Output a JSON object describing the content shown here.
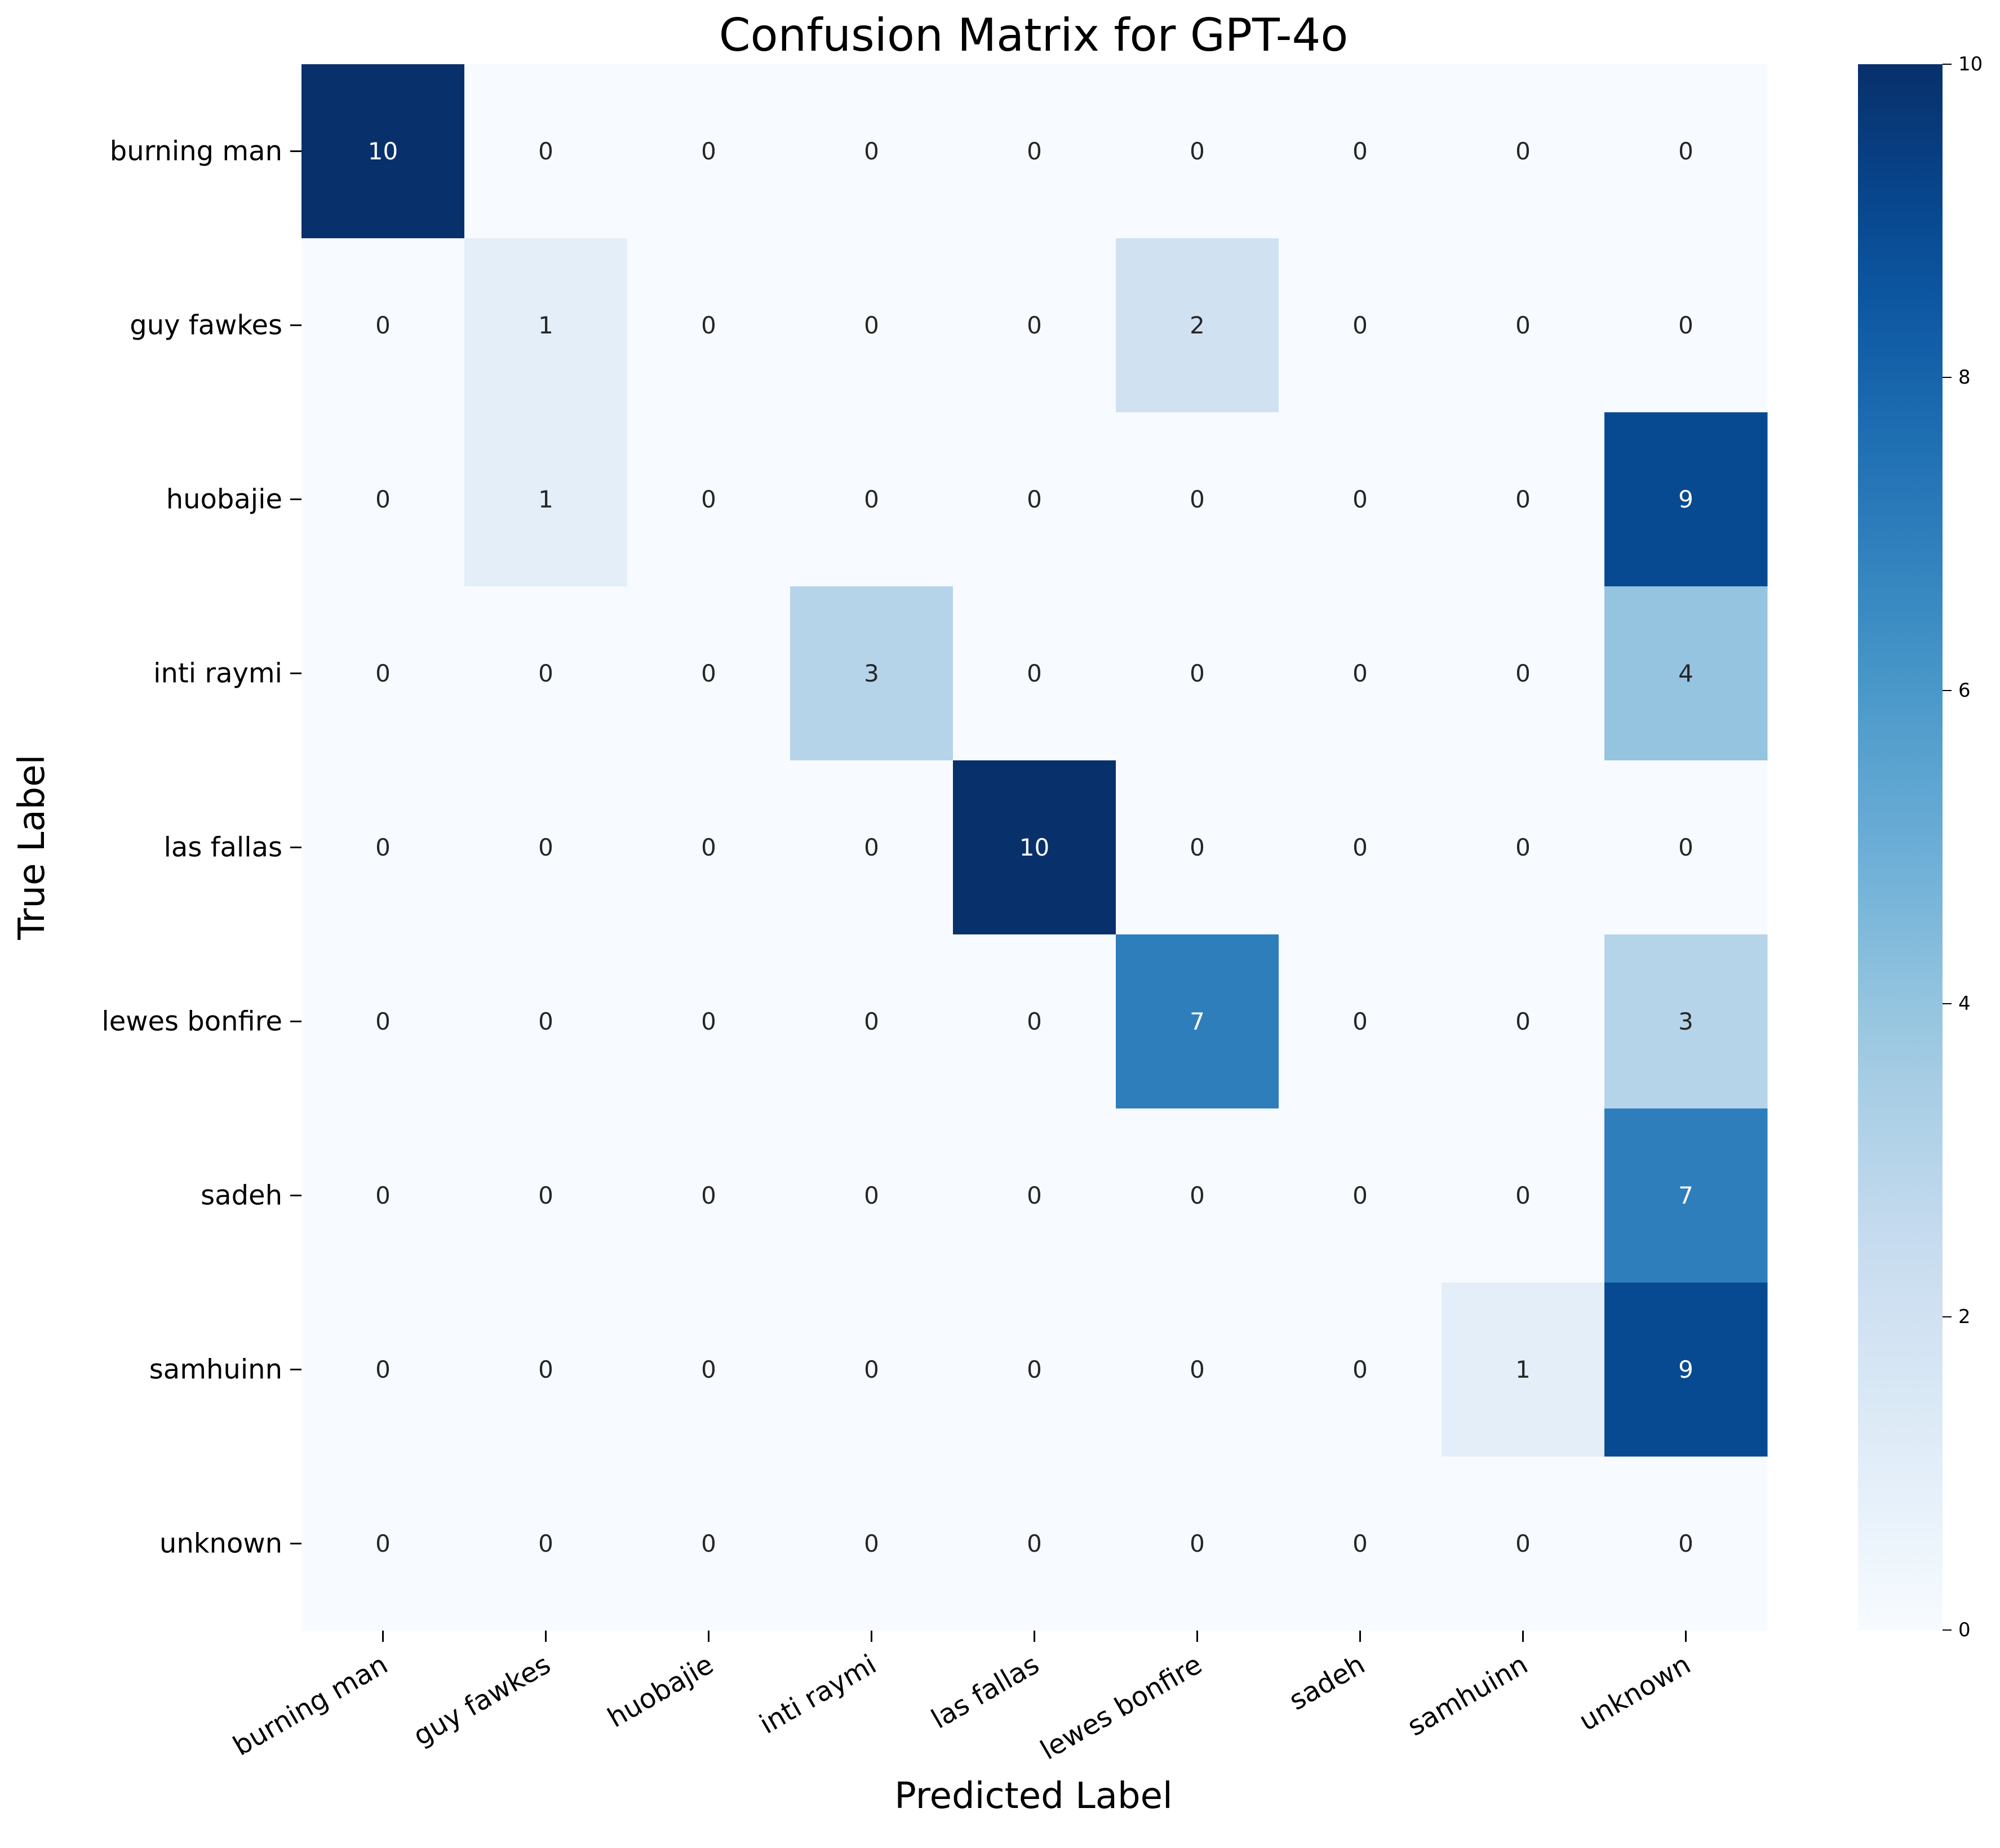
{
  "chart_data": {
    "type": "heatmap",
    "title": "Confusion Matrix for GPT-4o",
    "xlabel": "Predicted Label",
    "ylabel": "True Label",
    "x_categories": [
      "burning man",
      "guy fawkes",
      "huobajie",
      "inti raymi",
      "las fallas",
      "lewes bonfire",
      "sadeh",
      "samhuinn",
      "unknown"
    ],
    "y_categories": [
      "burning man",
      "guy fawkes",
      "huobajie",
      "inti raymi",
      "las fallas",
      "lewes bonfire",
      "sadeh",
      "samhuinn",
      "unknown"
    ],
    "values": [
      [
        10,
        0,
        0,
        0,
        0,
        0,
        0,
        0,
        0
      ],
      [
        0,
        1,
        0,
        0,
        0,
        2,
        0,
        0,
        0
      ],
      [
        0,
        1,
        0,
        0,
        0,
        0,
        0,
        0,
        9
      ],
      [
        0,
        0,
        0,
        3,
        0,
        0,
        0,
        0,
        4
      ],
      [
        0,
        0,
        0,
        0,
        10,
        0,
        0,
        0,
        0
      ],
      [
        0,
        0,
        0,
        0,
        0,
        7,
        0,
        0,
        3
      ],
      [
        0,
        0,
        0,
        0,
        0,
        0,
        0,
        0,
        7
      ],
      [
        0,
        0,
        0,
        0,
        0,
        0,
        0,
        1,
        9
      ],
      [
        0,
        0,
        0,
        0,
        0,
        0,
        0,
        0,
        0
      ]
    ],
    "colormap": "Blues",
    "vmin": 0,
    "vmax": 10,
    "colorbar_ticks": [
      0,
      2,
      4,
      6,
      8,
      10
    ],
    "colorbar_tick_labels": [
      "0",
      "2",
      "4",
      "6",
      "8",
      "10"
    ],
    "annotated": true,
    "grid": false
  }
}
